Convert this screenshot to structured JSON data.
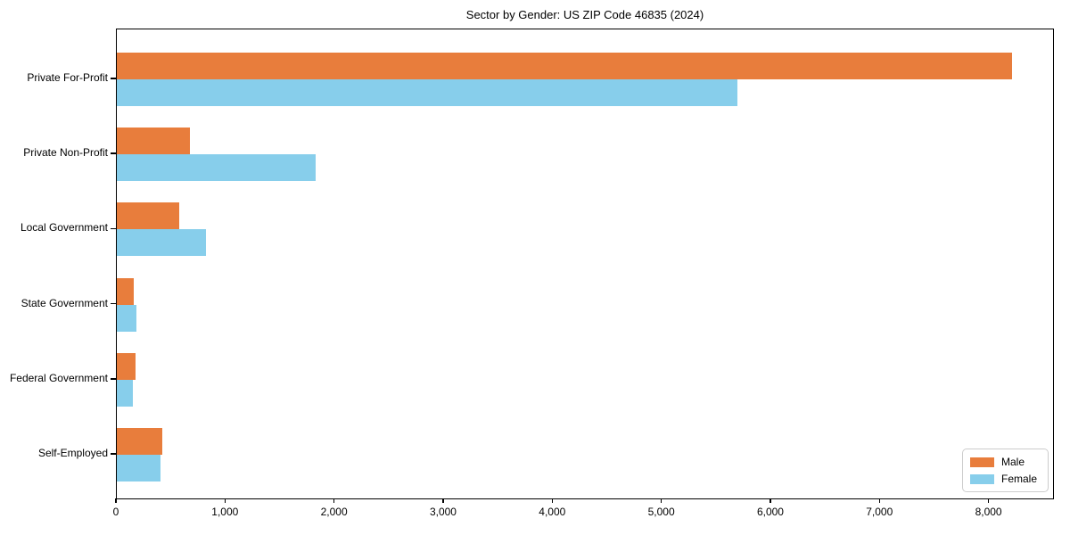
{
  "title": "Sector by Gender: US ZIP Code 46835 (2024)",
  "chart_data": {
    "type": "bar",
    "orientation": "horizontal",
    "title": "Sector by Gender: US ZIP Code 46835 (2024)",
    "categories": [
      "Private For-Profit",
      "Private Non-Profit",
      "Local Government",
      "State Government",
      "Federal Government",
      "Self-Employed"
    ],
    "series": [
      {
        "name": "Male",
        "color": "#e87d3c",
        "values": [
          8210,
          670,
          570,
          155,
          170,
          420
        ]
      },
      {
        "name": "Female",
        "color": "#87ceeb",
        "values": [
          5690,
          1825,
          820,
          180,
          145,
          400
        ]
      }
    ],
    "xlabel": "",
    "ylabel": "",
    "xlim": [
      0,
      8600
    ],
    "x_ticks": [
      0,
      1000,
      2000,
      3000,
      4000,
      5000,
      6000,
      7000,
      8000
    ],
    "x_tick_labels": [
      "0",
      "1,000",
      "2,000",
      "3,000",
      "4,000",
      "5,000",
      "6,000",
      "7,000",
      "8,000"
    ],
    "grid": false,
    "legend_position": "lower right",
    "colors": {
      "male": "#e87d3c",
      "female": "#87ceeb",
      "axis": "#000000",
      "legend_border": "#cccccc"
    }
  }
}
